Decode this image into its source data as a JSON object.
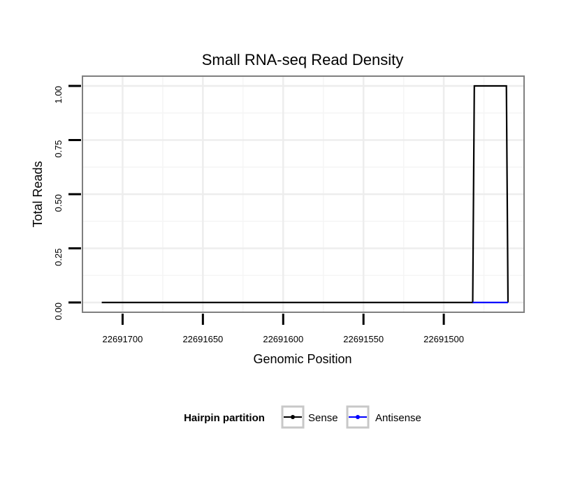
{
  "chart_data": {
    "type": "line",
    "title": "Small RNA-seq Read Density",
    "xlabel": "Genomic Position",
    "ylabel": "Total Reads",
    "xlim": [
      22691725,
      22691450
    ],
    "x_reversed": true,
    "ylim": [
      -0.045,
      1.045
    ],
    "x_ticks": [
      22691700,
      22691650,
      22691600,
      22691550,
      22691500
    ],
    "x_tick_labels": [
      "22691700",
      "22691650",
      "22691600",
      "22691550",
      "22691500"
    ],
    "y_ticks": [
      0,
      0.25,
      0.5,
      0.75,
      1.0
    ],
    "y_tick_labels": [
      "0.00",
      "0.25",
      "0.50",
      "0.75",
      "1.00"
    ],
    "grid": true,
    "legend": {
      "title": "Hairpin partition",
      "position": "bottom",
      "entries": [
        {
          "label": "Sense",
          "color": "#000000"
        },
        {
          "label": "Antisense",
          "color": "#0000ff"
        }
      ]
    },
    "series": [
      {
        "name": "Sense",
        "color": "#000000",
        "x": [
          22691713,
          22691482,
          22691481,
          22691461,
          22691460
        ],
        "y": [
          0,
          0,
          1,
          1,
          0
        ]
      },
      {
        "name": "Antisense",
        "color": "#0000ff",
        "x": [
          22691482,
          22691460
        ],
        "y": [
          0,
          0
        ]
      }
    ]
  }
}
